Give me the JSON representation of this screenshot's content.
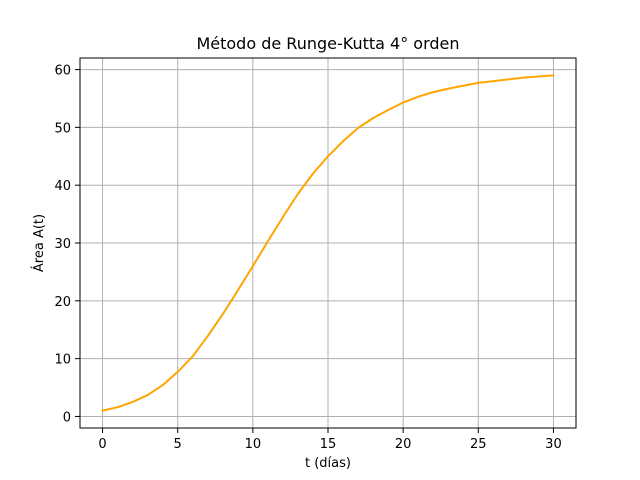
{
  "chart_data": {
    "type": "line",
    "title": "Método de Runge-Kutta 4° orden",
    "xlabel": "t (días)",
    "ylabel": "Área A(t)",
    "xlim": [
      -1.5,
      31.5
    ],
    "ylim": [
      -2,
      62
    ],
    "xticks": [
      0,
      5,
      10,
      15,
      20,
      25,
      30
    ],
    "yticks": [
      0,
      10,
      20,
      30,
      40,
      50,
      60
    ],
    "grid": true,
    "series": [
      {
        "color": "#ffa500",
        "x": [
          0,
          1,
          2,
          3,
          4,
          5,
          6,
          7,
          8,
          9,
          10,
          11,
          12,
          13,
          14,
          15,
          16,
          17,
          18,
          19,
          20,
          21,
          22,
          23,
          24,
          25,
          26,
          27,
          28,
          29,
          30
        ],
        "y": [
          1.0,
          1.6,
          2.5,
          3.7,
          5.4,
          7.7,
          10.4,
          13.9,
          17.7,
          21.8,
          26.0,
          30.3,
          34.5,
          38.5,
          42.0,
          45.0,
          47.6,
          49.9,
          51.6,
          53.0,
          54.3,
          55.3,
          56.1,
          56.7,
          57.2,
          57.7,
          58.0,
          58.3,
          58.6,
          58.8,
          59.0
        ]
      }
    ]
  }
}
